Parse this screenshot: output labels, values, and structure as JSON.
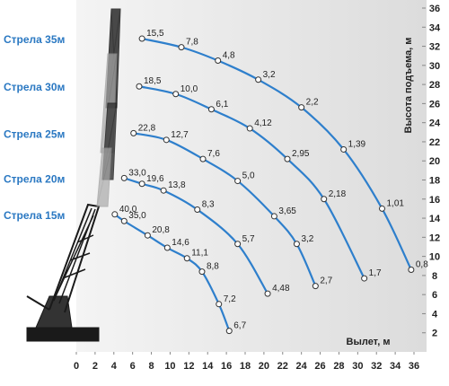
{
  "chart_data": {
    "type": "line",
    "x_label": "Вылет, м",
    "y_label": "Высота подъема, м",
    "xlim": [
      0,
      36
    ],
    "xticks": [
      0,
      2,
      4,
      6,
      8,
      10,
      12,
      14,
      16,
      18,
      20,
      22,
      24,
      26,
      28,
      30,
      32,
      34,
      36
    ],
    "ylim": [
      0,
      36
    ],
    "yticks": [
      2,
      4,
      6,
      8,
      10,
      12,
      14,
      16,
      18,
      20,
      22,
      24,
      26,
      28,
      30,
      32,
      34,
      36
    ],
    "series": [
      {
        "name": "Стрела 35м",
        "color": "#2e7fcc",
        "x": [
          7.0,
          11.2,
          15.1,
          19.4,
          24.0,
          28.5,
          32.6,
          35.7
        ],
        "y": [
          32.8,
          31.9,
          30.5,
          28.5,
          25.6,
          21.2,
          15.0,
          8.6
        ],
        "values": [
          15.5,
          7.8,
          4.8,
          3.2,
          2.2,
          1.39,
          1.01,
          0.8
        ],
        "value_labels": [
          "15,5",
          "7,8",
          "4,8",
          "3,2",
          "2,2",
          "1,39",
          "1,01",
          "0,8"
        ]
      },
      {
        "name": "Стрела 30м",
        "color": "#2e7fcc",
        "x": [
          6.7,
          10.6,
          14.4,
          18.5,
          22.5,
          26.4,
          30.7
        ],
        "y": [
          27.8,
          27.0,
          25.4,
          23.4,
          20.2,
          16.0,
          7.7
        ],
        "values": [
          18.5,
          10.0,
          6.1,
          4.12,
          2.95,
          2.18,
          1.7
        ],
        "value_labels": [
          "18,5",
          "10,0",
          "6,1",
          "4,12",
          "2,95",
          "2,18",
          "1,7"
        ]
      },
      {
        "name": "Стрела 25м",
        "color": "#2e7fcc",
        "x": [
          6.1,
          9.6,
          13.5,
          17.2,
          21.1,
          23.5,
          25.5
        ],
        "y": [
          22.9,
          22.2,
          20.2,
          17.9,
          14.2,
          11.3,
          6.9
        ],
        "values": [
          22.8,
          12.7,
          7.6,
          5.0,
          3.65,
          3.2,
          2.7
        ],
        "value_labels": [
          "22,8",
          "12,7",
          "7,6",
          "5,0",
          "3,65",
          "3,2",
          "2,7"
        ]
      },
      {
        "name": "Стрела 20м",
        "color": "#2e7fcc",
        "x": [
          5.1,
          7.0,
          9.3,
          12.9,
          17.2,
          20.4
        ],
        "y": [
          18.2,
          17.6,
          16.9,
          14.9,
          11.3,
          6.1
        ],
        "values": [
          33.0,
          19.6,
          13.8,
          8.3,
          5.7,
          4.48
        ],
        "value_labels": [
          "33,0",
          "19,6",
          "13,8",
          "8,3",
          "5,7",
          "4,48"
        ]
      },
      {
        "name": "Стрела 15м",
        "color": "#2e7fcc",
        "x": [
          4.1,
          5.1,
          7.6,
          9.7,
          11.8,
          13.4,
          15.2,
          16.3
        ],
        "y": [
          14.4,
          13.7,
          12.2,
          10.9,
          9.8,
          8.4,
          5.0,
          2.2
        ],
        "values": [
          40.0,
          35.0,
          20.8,
          14.6,
          11.1,
          8.8,
          7.2,
          6.7
        ],
        "value_labels": [
          "40,0",
          "35,0",
          "20,8",
          "14,6",
          "11,1",
          "8,8",
          "7,2",
          "6,7"
        ]
      }
    ]
  }
}
